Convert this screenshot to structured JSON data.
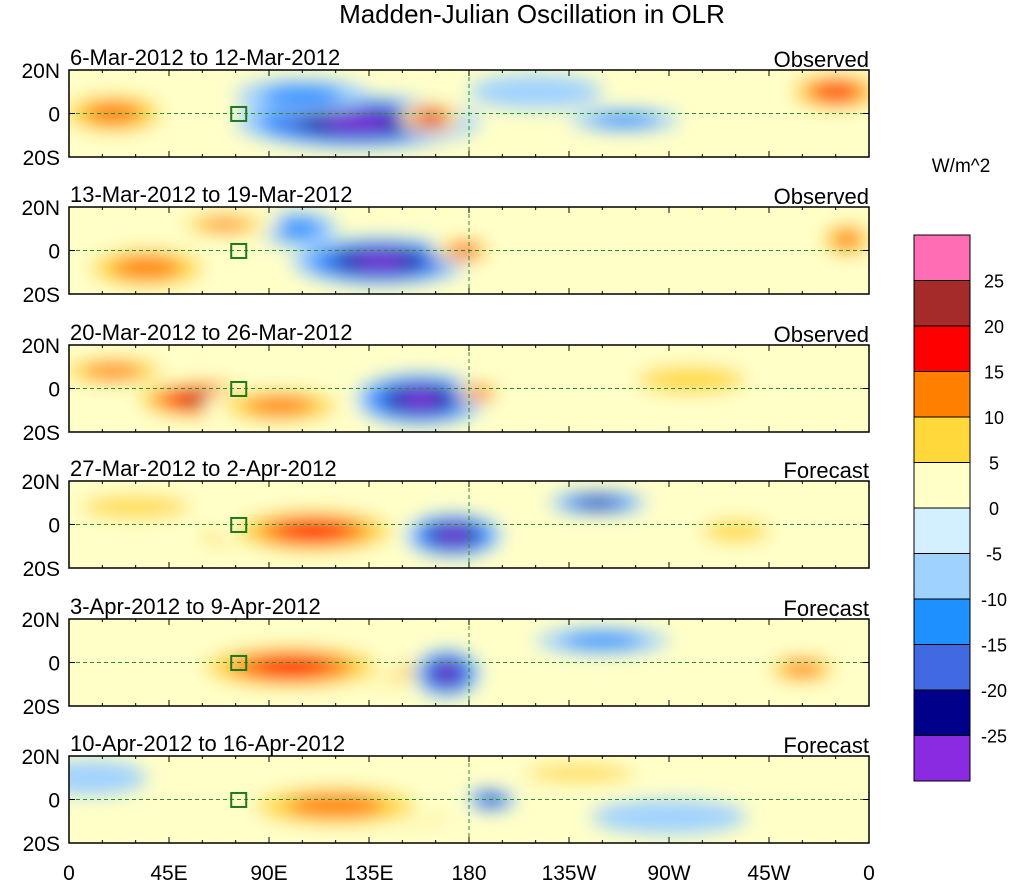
{
  "chart_data": {
    "type": "heatmap",
    "title": "Madden-Julian Oscillation in OLR",
    "units_label": "W/m^2",
    "y_tick_labels": [
      "20N",
      "0",
      "20S"
    ],
    "x_tick_labels": [
      "0",
      "45E",
      "90E",
      "135E",
      "180",
      "135W",
      "90W",
      "45W",
      "0"
    ],
    "x_range_deg": [
      0,
      360
    ],
    "y_range_deg": [
      -20,
      20
    ],
    "colorbar": {
      "levels": [
        25,
        20,
        15,
        10,
        5,
        0,
        -5,
        -10,
        -15,
        -20,
        -25
      ],
      "colors": [
        "#ff6eb4",
        "#a52a2a",
        "#ff0000",
        "#ff7f00",
        "#ffd93c",
        "#ffffc8",
        "#d2f0ff",
        "#a0d2ff",
        "#1e90ff",
        "#4169e1",
        "#00008b",
        "#8a2be2"
      ]
    },
    "panels": [
      {
        "date_range": "6-Mar-2012 to 12-Mar-2012",
        "kind": "Observed",
        "features": [
          {
            "lon": 130,
            "lat": -4,
            "value": -32,
            "w": 55,
            "h": 12
          },
          {
            "lon": 105,
            "lat": 8,
            "value": -12,
            "w": 30,
            "h": 8
          },
          {
            "lon": 163,
            "lat": -2,
            "value": 22,
            "w": 14,
            "h": 7
          },
          {
            "lon": 20,
            "lat": 0,
            "value": 10,
            "w": 30,
            "h": 12
          },
          {
            "lon": 345,
            "lat": 10,
            "value": 16,
            "w": 25,
            "h": 10
          },
          {
            "lon": 250,
            "lat": -3,
            "value": -10,
            "w": 25,
            "h": 5
          },
          {
            "lon": 210,
            "lat": 10,
            "value": -6,
            "w": 30,
            "h": 8
          }
        ]
      },
      {
        "date_range": "13-Mar-2012 to 19-Mar-2012",
        "kind": "Observed",
        "features": [
          {
            "lon": 140,
            "lat": -5,
            "value": -30,
            "w": 40,
            "h": 11
          },
          {
            "lon": 103,
            "lat": 10,
            "value": -10,
            "w": 18,
            "h": 8
          },
          {
            "lon": 178,
            "lat": 0,
            "value": 18,
            "w": 14,
            "h": 6
          },
          {
            "lon": 35,
            "lat": -8,
            "value": 12,
            "w": 35,
            "h": 12
          },
          {
            "lon": 70,
            "lat": 12,
            "value": 10,
            "w": 25,
            "h": 6
          },
          {
            "lon": 350,
            "lat": 5,
            "value": 14,
            "w": 15,
            "h": 10
          }
        ]
      },
      {
        "date_range": "20-Mar-2012 to 26-Mar-2012",
        "kind": "Observed",
        "features": [
          {
            "lon": 158,
            "lat": -5,
            "value": -30,
            "w": 30,
            "h": 12
          },
          {
            "lon": 60,
            "lat": -5,
            "value": 24,
            "w": 35,
            "h": 10
          },
          {
            "lon": 95,
            "lat": -8,
            "value": 14,
            "w": 35,
            "h": 10
          },
          {
            "lon": 185,
            "lat": -2,
            "value": 15,
            "w": 10,
            "h": 5
          },
          {
            "lon": 20,
            "lat": 8,
            "value": 12,
            "w": 30,
            "h": 8
          },
          {
            "lon": 280,
            "lat": 4,
            "value": 5,
            "w": 40,
            "h": 10
          }
        ]
      },
      {
        "date_range": "27-Mar-2012 to 2-Apr-2012",
        "kind": "Forecast",
        "features": [
          {
            "lon": 90,
            "lat": -5,
            "value": 28,
            "w": 35,
            "h": 8
          },
          {
            "lon": 110,
            "lat": -3,
            "value": 16,
            "w": 45,
            "h": 12
          },
          {
            "lon": 173,
            "lat": -5,
            "value": -28,
            "w": 22,
            "h": 10
          },
          {
            "lon": 238,
            "lat": 10,
            "value": -22,
            "w": 22,
            "h": 5
          },
          {
            "lon": 30,
            "lat": 8,
            "value": 6,
            "w": 40,
            "h": 8
          },
          {
            "lon": 300,
            "lat": -3,
            "value": 6,
            "w": 25,
            "h": 8
          }
        ]
      },
      {
        "date_range": "3-Apr-2012 to 9-Apr-2012",
        "kind": "Forecast",
        "features": [
          {
            "lon": 120,
            "lat": -4,
            "value": 30,
            "w": 45,
            "h": 9
          },
          {
            "lon": 100,
            "lat": -2,
            "value": 16,
            "w": 50,
            "h": 12
          },
          {
            "lon": 170,
            "lat": -5,
            "value": -28,
            "w": 15,
            "h": 11
          },
          {
            "lon": 240,
            "lat": 10,
            "value": -12,
            "w": 30,
            "h": 6
          },
          {
            "lon": 330,
            "lat": -3,
            "value": 10,
            "w": 20,
            "h": 8
          },
          {
            "lon": 20,
            "lat": 10,
            "value": -4,
            "w": 25,
            "h": 8
          }
        ]
      },
      {
        "date_range": "10-Apr-2012 to 16-Apr-2012",
        "kind": "Forecast",
        "features": [
          {
            "lon": 140,
            "lat": -6,
            "value": 30,
            "w": 35,
            "h": 9
          },
          {
            "lon": 120,
            "lat": -3,
            "value": 14,
            "w": 50,
            "h": 12
          },
          {
            "lon": 190,
            "lat": 0,
            "value": -24,
            "w": 11,
            "h": 5
          },
          {
            "lon": 230,
            "lat": 12,
            "value": 8,
            "w": 40,
            "h": 6
          },
          {
            "lon": 10,
            "lat": 10,
            "value": -8,
            "w": 25,
            "h": 8
          },
          {
            "lon": 270,
            "lat": -8,
            "value": -6,
            "w": 35,
            "h": 8
          }
        ]
      }
    ]
  }
}
